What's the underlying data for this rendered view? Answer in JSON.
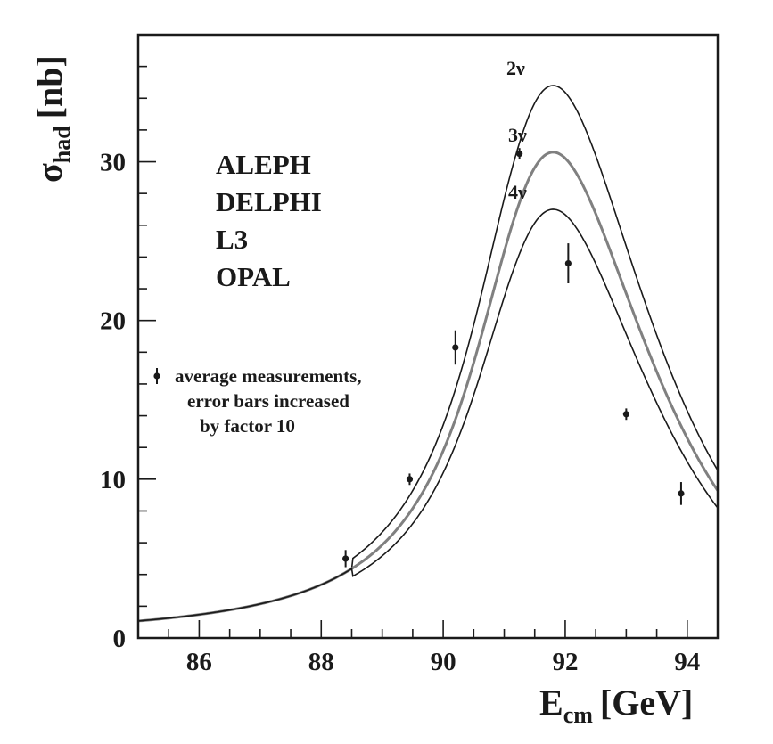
{
  "chart_data": {
    "type": "line",
    "xlabel": {
      "main": "E",
      "sub": "cm",
      "unit": "[GeV]"
    },
    "ylabel": {
      "main": "σ",
      "sub": "had",
      "unit": "[nb]"
    },
    "xlim": [
      85,
      94.5
    ],
    "ylim": [
      0,
      38
    ],
    "xticks": [
      86,
      88,
      90,
      92,
      94
    ],
    "yticks": [
      0,
      10,
      20,
      30
    ],
    "experiments": [
      "ALEPH",
      "DELPHI",
      "L3",
      "OPAL"
    ],
    "legend": {
      "placement": "left-middle",
      "lines": [
        "average measurements,",
        "error bars increased",
        "by factor 10"
      ]
    },
    "series": [
      {
        "name": "2ν",
        "peak_x": 91.3,
        "peak_y": 34.8,
        "color": "#1a1a1a"
      },
      {
        "name": "3ν",
        "peak_x": 91.3,
        "peak_y": 30.6,
        "color": "#808080"
      },
      {
        "name": "4ν",
        "peak_x": 91.3,
        "peak_y": 27.0,
        "color": "#1a1a1a"
      }
    ],
    "points": [
      {
        "x": 88.4,
        "y": 5.0,
        "err": 0.3
      },
      {
        "x": 89.45,
        "y": 10.0,
        "err": 0.2
      },
      {
        "x": 90.2,
        "y": 18.3,
        "err": 0.6
      },
      {
        "x": 91.25,
        "y": 30.5,
        "err": 0.2
      },
      {
        "x": 92.05,
        "y": 23.6,
        "err": 0.7
      },
      {
        "x": 93.0,
        "y": 14.1,
        "err": 0.2
      },
      {
        "x": 93.9,
        "y": 9.1,
        "err": 0.4
      }
    ]
  }
}
